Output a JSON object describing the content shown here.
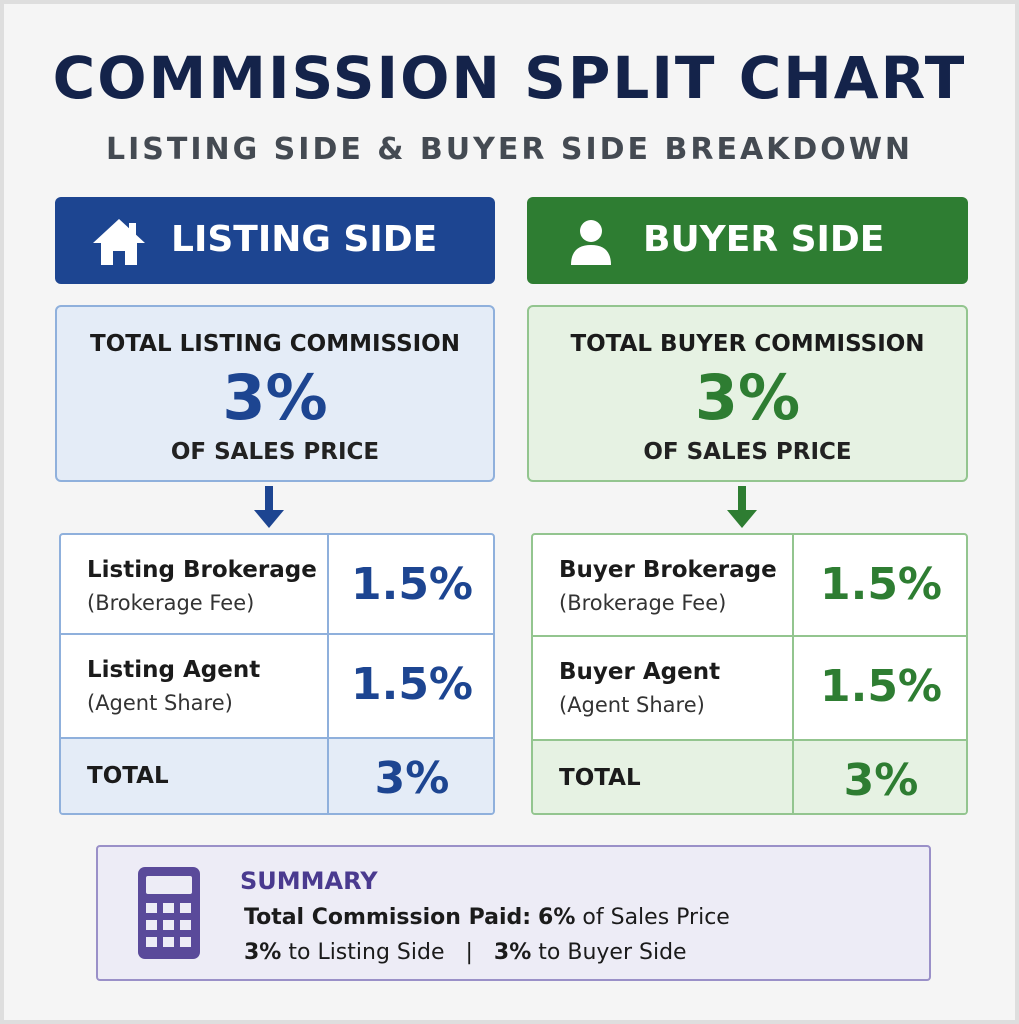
{
  "header": {
    "title": "COMMISSION SPLIT CHART",
    "subtitle": "LISTING SIDE & BUYER SIDE BREAKDOWN"
  },
  "sides": [
    {
      "title": "LISTING SIDE",
      "total_label": "TOTAL LISTING COMMISSION",
      "total_value": "3%",
      "total_note": "OF SALES PRICE",
      "rows": [
        {
          "label": "Listing Brokerage",
          "sub": "(Brokerage Fee)",
          "value": "1.5%"
        },
        {
          "label": "Listing Agent",
          "sub": "(Agent Share)",
          "value": "1.5%"
        },
        {
          "label": "TOTAL",
          "value": "3%"
        }
      ]
    },
    {
      "title": "BUYER SIDE",
      "total_label": "TOTAL BUYER COMMISSION",
      "total_value": "3%",
      "total_note": "OF SALES PRICE",
      "rows": [
        {
          "label": "Buyer Brokerage",
          "sub": "(Brokerage Fee)",
          "value": "1.5%"
        },
        {
          "label": "Buyer Agent",
          "sub": "(Agent Share)",
          "value": "1.5%"
        },
        {
          "label": "TOTAL",
          "value": "3%"
        }
      ]
    }
  ],
  "summary": {
    "title": "SUMMARY",
    "paid_label": "Total Commission Paid:",
    "paid_value": "6%",
    "paid_rest": "of Sales Price",
    "split": [
      {
        "value": "3%",
        "text": "to Listing Side"
      },
      {
        "value": "3%",
        "text": "to Buyer Side"
      }
    ],
    "separator": "|"
  }
}
